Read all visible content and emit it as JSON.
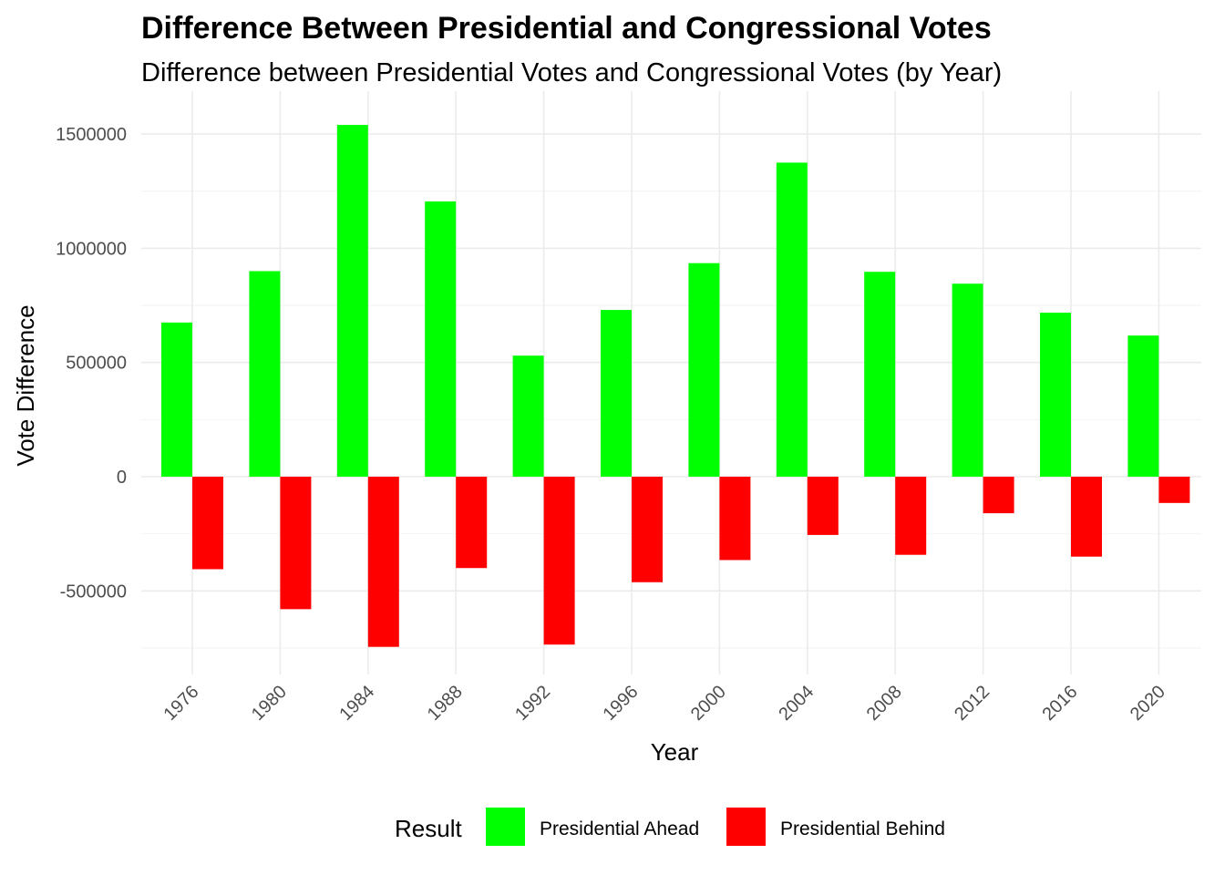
{
  "chart_data": {
    "type": "bar",
    "title": "Difference Between Presidential and Congressional Votes",
    "subtitle": "Difference between Presidential Votes and Congressional Votes (by Year)",
    "xlabel": "Year",
    "ylabel": "Vote Difference",
    "categories": [
      "1976",
      "1980",
      "1984",
      "1988",
      "1992",
      "1996",
      "2000",
      "2004",
      "2008",
      "2012",
      "2016",
      "2020"
    ],
    "series": [
      {
        "name": "Presidential Ahead",
        "color": "#00ff00",
        "values": [
          675000,
          900000,
          1540000,
          1205000,
          530000,
          730000,
          935000,
          1375000,
          897000,
          845000,
          718000,
          618000
        ]
      },
      {
        "name": "Presidential Behind",
        "color": "#ff0000",
        "values": [
          -405000,
          -580000,
          -745000,
          -400000,
          -735000,
          -462000,
          -365000,
          -255000,
          -342000,
          -160000,
          -350000,
          -115000
        ]
      }
    ],
    "yticks": [
      -500000,
      0,
      500000,
      1000000,
      1500000
    ],
    "ytick_labels": [
      "-500000",
      "0",
      "500000",
      "1000000",
      "1500000"
    ],
    "ylim": [
      -840000,
      1640000
    ],
    "grid": true,
    "legend": {
      "title": "Result",
      "position": "bottom"
    }
  }
}
